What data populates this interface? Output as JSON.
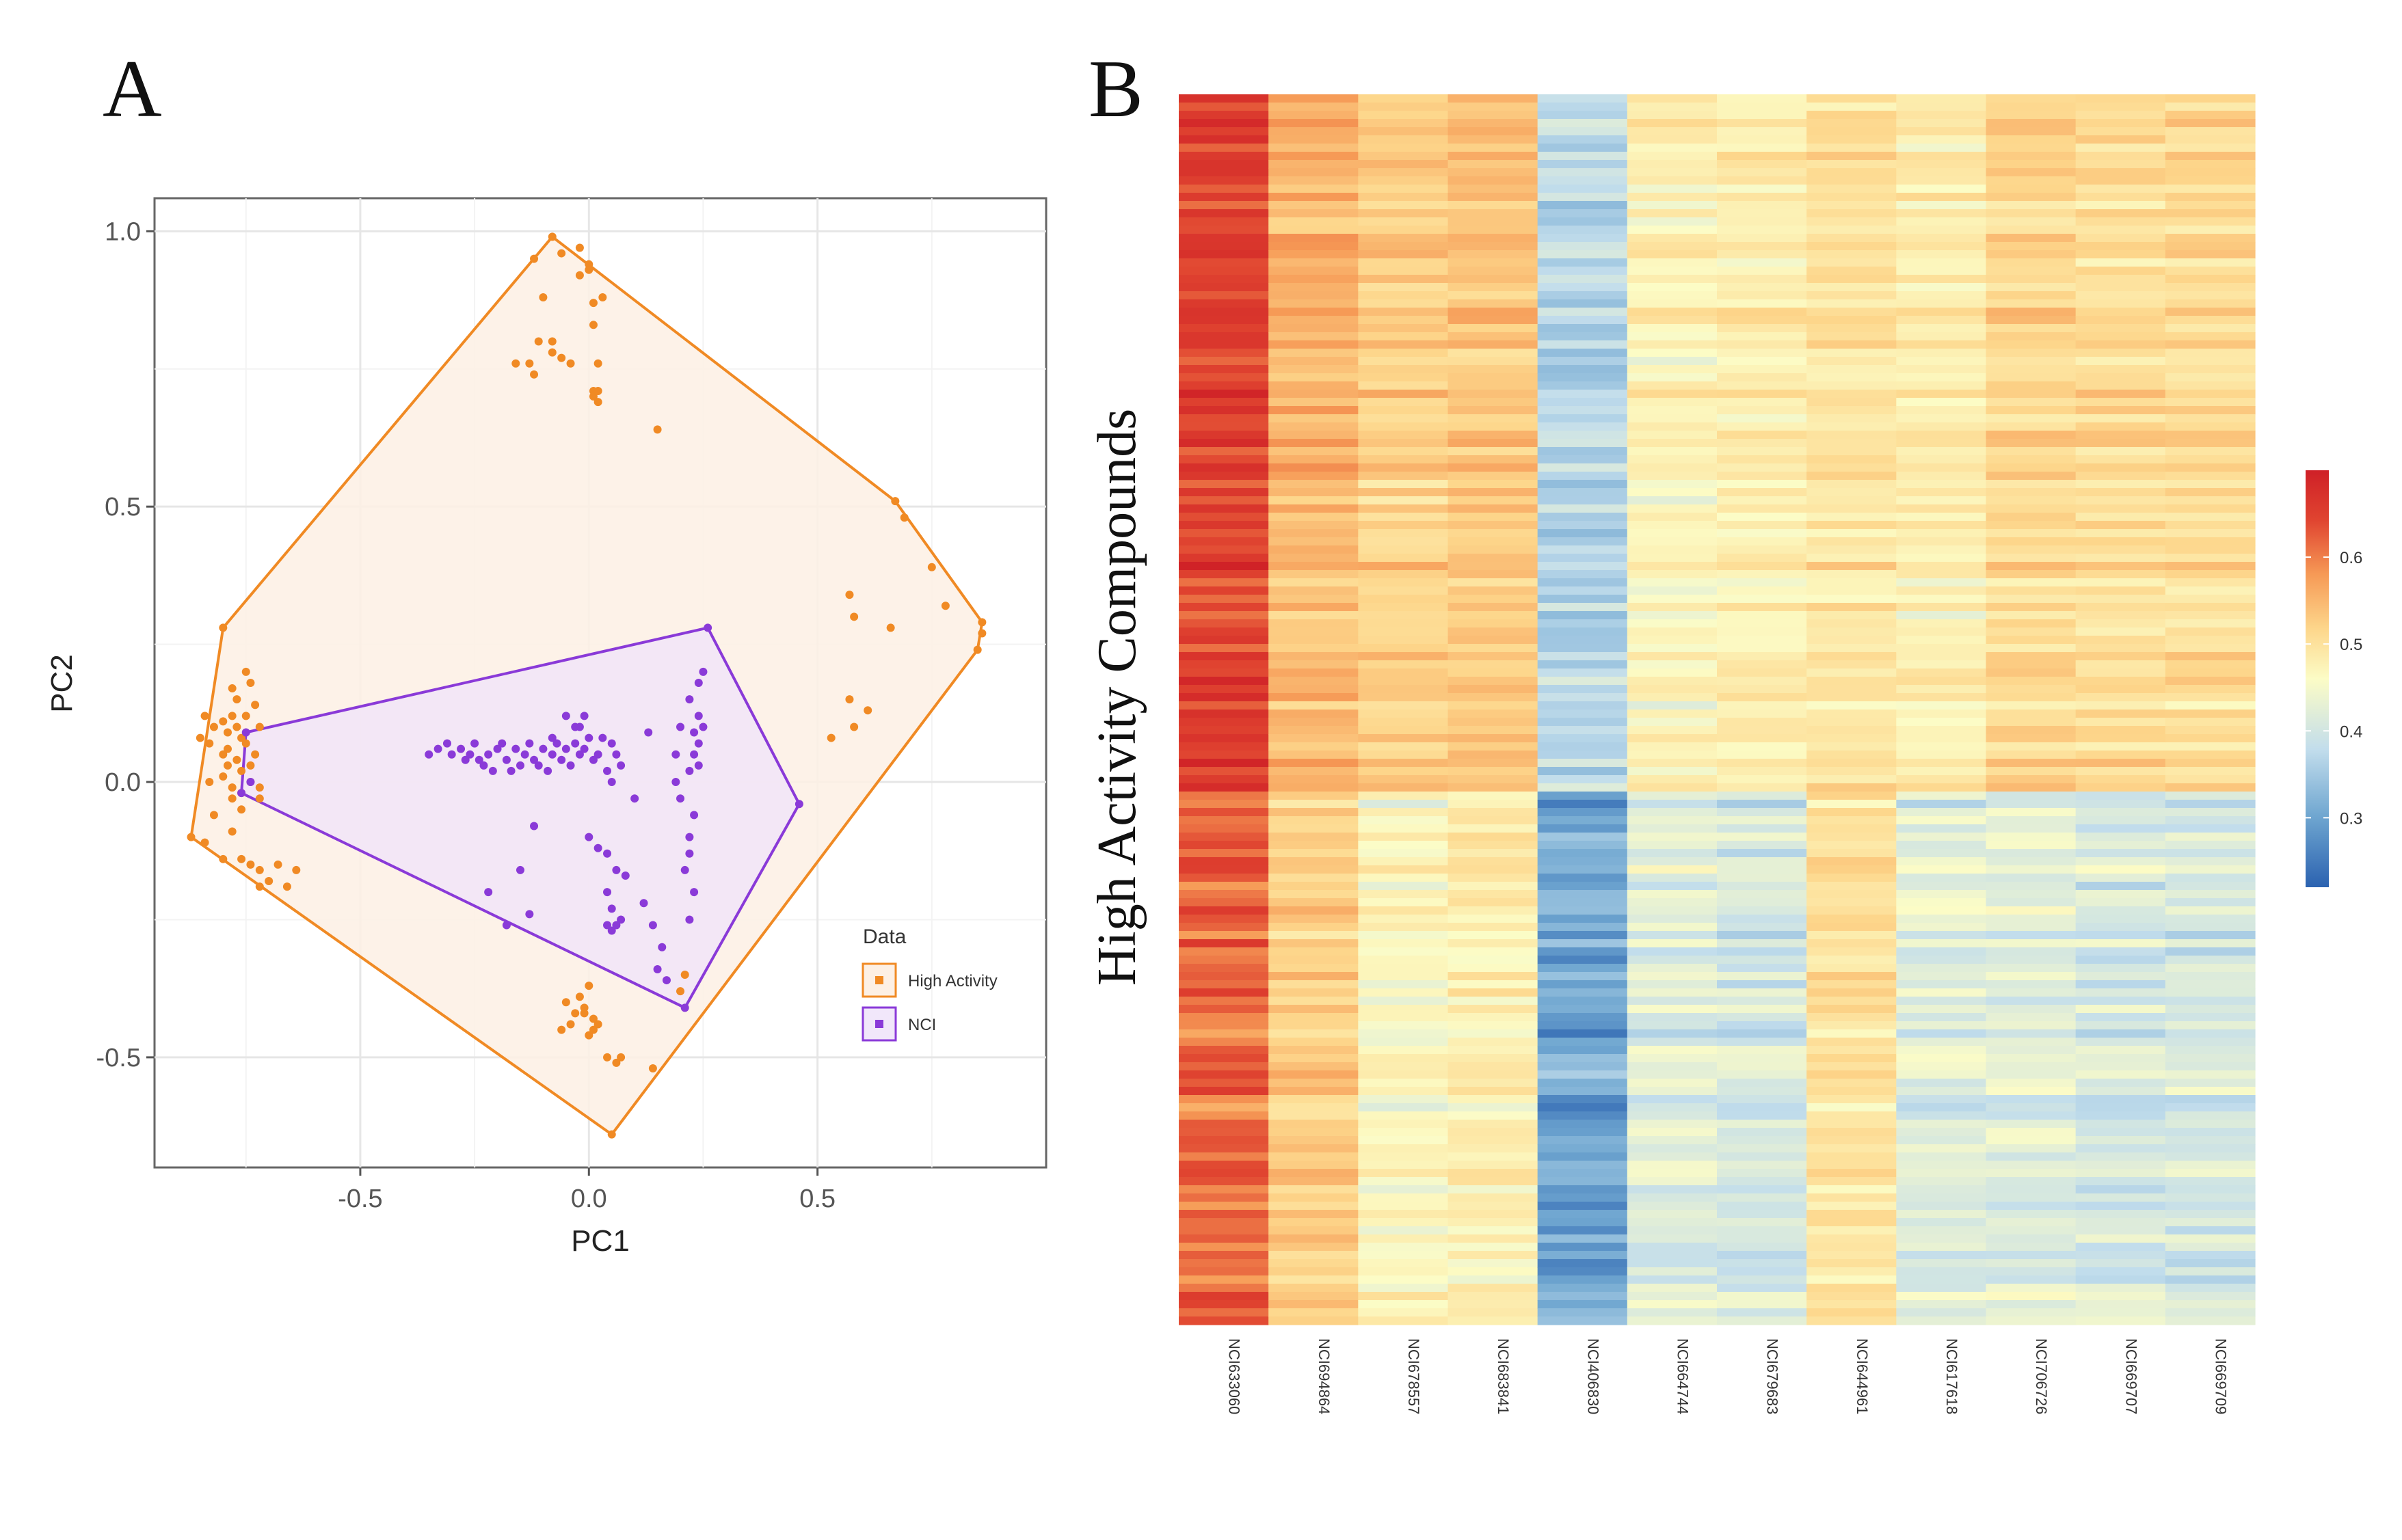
{
  "panels": {
    "a_label": "A",
    "b_label": "B"
  },
  "chart_data": [
    {
      "type": "scatter",
      "panel": "A",
      "title": "",
      "xlabel": "PC1",
      "ylabel": "PC2",
      "xlim": [
        -0.95,
        1.0
      ],
      "ylim": [
        -0.7,
        1.06
      ],
      "xticks": [
        -0.5,
        0.0,
        0.5
      ],
      "xtick_labels": [
        "-0.5",
        "0.0",
        "0.5"
      ],
      "yticks": [
        -0.5,
        0.0,
        0.5,
        1.0
      ],
      "ytick_labels": [
        "-0.5",
        "0.0",
        "0.5",
        "1.0"
      ],
      "grid": true,
      "legend": {
        "title": "Data",
        "position": "right",
        "entries": [
          {
            "label": "High Activity",
            "color": "#f08a24"
          },
          {
            "label": "NCI",
            "color": "#8a3ad8"
          }
        ]
      },
      "series": [
        {
          "name": "High Activity",
          "color": "#f08a24",
          "hull": [
            [
              -0.08,
              0.99
            ],
            [
              0.67,
              0.51
            ],
            [
              0.86,
              0.29
            ],
            [
              0.85,
              0.24
            ],
            [
              0.05,
              -0.64
            ],
            [
              -0.87,
              -0.1
            ],
            [
              -0.8,
              0.28
            ]
          ],
          "points": [
            [
              -0.08,
              0.99
            ],
            [
              -0.02,
              0.97
            ],
            [
              -0.06,
              0.96
            ],
            [
              0.0,
              0.93
            ],
            [
              0.0,
              0.94
            ],
            [
              -0.12,
              0.95
            ],
            [
              -0.02,
              0.92
            ],
            [
              -0.1,
              0.88
            ],
            [
              -0.11,
              0.8
            ],
            [
              -0.13,
              0.76
            ],
            [
              -0.12,
              0.74
            ],
            [
              -0.16,
              0.76
            ],
            [
              -0.08,
              0.8
            ],
            [
              -0.08,
              0.78
            ],
            [
              -0.06,
              0.77
            ],
            [
              -0.04,
              0.76
            ],
            [
              0.02,
              0.76
            ],
            [
              0.01,
              0.87
            ],
            [
              0.01,
              0.83
            ],
            [
              0.03,
              0.88
            ],
            [
              0.01,
              0.71
            ],
            [
              0.01,
              0.7
            ],
            [
              0.02,
              0.71
            ],
            [
              0.02,
              0.69
            ],
            [
              0.15,
              0.64
            ],
            [
              0.67,
              0.51
            ],
            [
              0.69,
              0.48
            ],
            [
              0.75,
              0.39
            ],
            [
              0.78,
              0.32
            ],
            [
              0.86,
              0.29
            ],
            [
              0.85,
              0.24
            ],
            [
              0.86,
              0.27
            ],
            [
              0.57,
              0.34
            ],
            [
              0.58,
              0.3
            ],
            [
              0.66,
              0.28
            ],
            [
              0.57,
              0.15
            ],
            [
              0.58,
              0.1
            ],
            [
              0.61,
              0.13
            ],
            [
              0.53,
              0.08
            ],
            [
              0.05,
              -0.64
            ],
            [
              0.14,
              -0.52
            ],
            [
              0.2,
              -0.38
            ],
            [
              0.21,
              -0.35
            ],
            [
              0.04,
              -0.5
            ],
            [
              0.06,
              -0.51
            ],
            [
              0.07,
              -0.5
            ],
            [
              0.0,
              -0.46
            ],
            [
              0.02,
              -0.44
            ],
            [
              0.01,
              -0.45
            ],
            [
              -0.01,
              -0.41
            ],
            [
              -0.01,
              -0.42
            ],
            [
              0.0,
              -0.37
            ],
            [
              0.01,
              -0.43
            ],
            [
              -0.02,
              -0.39
            ],
            [
              -0.06,
              -0.45
            ],
            [
              -0.05,
              -0.4
            ],
            [
              -0.04,
              -0.44
            ],
            [
              -0.03,
              -0.42
            ],
            [
              -0.87,
              -0.1
            ],
            [
              -0.82,
              -0.06
            ],
            [
              -0.84,
              -0.11
            ],
            [
              -0.8,
              -0.14
            ],
            [
              -0.78,
              -0.09
            ],
            [
              -0.76,
              -0.14
            ],
            [
              -0.74,
              -0.15
            ],
            [
              -0.72,
              -0.16
            ],
            [
              -0.72,
              -0.19
            ],
            [
              -0.7,
              -0.18
            ],
            [
              -0.66,
              -0.19
            ],
            [
              -0.64,
              -0.16
            ],
            [
              -0.68,
              -0.15
            ],
            [
              -0.76,
              -0.05
            ],
            [
              -0.78,
              -0.03
            ],
            [
              -0.72,
              -0.03
            ],
            [
              -0.83,
              0.0
            ],
            [
              -0.8,
              0.01
            ],
            [
              -0.74,
              0.03
            ],
            [
              -0.8,
              0.28
            ],
            [
              -0.75,
              0.2
            ],
            [
              -0.78,
              0.17
            ],
            [
              -0.74,
              0.18
            ],
            [
              -0.77,
              0.15
            ],
            [
              -0.75,
              0.12
            ],
            [
              -0.73,
              0.14
            ],
            [
              -0.78,
              0.12
            ],
            [
              -0.8,
              0.11
            ],
            [
              -0.72,
              0.1
            ],
            [
              -0.84,
              0.12
            ],
            [
              -0.83,
              0.07
            ],
            [
              -0.85,
              0.08
            ],
            [
              -0.79,
              0.06
            ],
            [
              -0.76,
              0.08
            ],
            [
              -0.8,
              0.05
            ],
            [
              -0.79,
              0.03
            ],
            [
              -0.77,
              0.04
            ],
            [
              -0.73,
              0.05
            ],
            [
              -0.75,
              0.07
            ],
            [
              -0.79,
              0.09
            ],
            [
              -0.77,
              0.1
            ],
            [
              -0.82,
              0.1
            ],
            [
              -0.76,
              0.02
            ],
            [
              -0.74,
              0.0
            ],
            [
              -0.78,
              -0.01
            ],
            [
              -0.76,
              -0.02
            ],
            [
              -0.72,
              -0.01
            ]
          ]
        },
        {
          "name": "NCI",
          "color": "#8a3ad8",
          "hull": [
            [
              0.26,
              0.28
            ],
            [
              0.46,
              -0.04
            ],
            [
              0.21,
              -0.41
            ],
            [
              -0.76,
              -0.02
            ],
            [
              -0.75,
              0.09
            ]
          ],
          "points": [
            [
              0.26,
              0.28
            ],
            [
              0.46,
              -0.04
            ],
            [
              0.21,
              -0.41
            ],
            [
              -0.76,
              -0.02
            ],
            [
              -0.75,
              0.09
            ],
            [
              -0.74,
              0.0
            ],
            [
              -0.33,
              0.06
            ],
            [
              -0.3,
              0.05
            ],
            [
              -0.28,
              0.06
            ],
            [
              -0.26,
              0.05
            ],
            [
              -0.24,
              0.04
            ],
            [
              -0.22,
              0.05
            ],
            [
              -0.2,
              0.06
            ],
            [
              -0.18,
              0.04
            ],
            [
              -0.17,
              0.02
            ],
            [
              -0.16,
              0.06
            ],
            [
              -0.14,
              0.05
            ],
            [
              -0.12,
              0.04
            ],
            [
              -0.1,
              0.06
            ],
            [
              -0.08,
              0.05
            ],
            [
              -0.06,
              0.04
            ],
            [
              -0.05,
              0.06
            ],
            [
              -0.04,
              0.03
            ],
            [
              -0.02,
              0.05
            ],
            [
              -0.01,
              0.06
            ],
            [
              0.01,
              0.04
            ],
            [
              0.02,
              0.05
            ],
            [
              0.04,
              0.02
            ],
            [
              0.05,
              0.0
            ],
            [
              -0.23,
              0.03
            ],
            [
              -0.21,
              0.02
            ],
            [
              -0.19,
              0.07
            ],
            [
              -0.15,
              0.03
            ],
            [
              -0.13,
              0.07
            ],
            [
              -0.11,
              0.03
            ],
            [
              -0.09,
              0.02
            ],
            [
              -0.07,
              0.07
            ],
            [
              -0.03,
              0.07
            ],
            [
              0.0,
              0.08
            ],
            [
              0.03,
              0.08
            ],
            [
              0.05,
              0.07
            ],
            [
              0.06,
              0.05
            ],
            [
              0.07,
              0.03
            ],
            [
              -0.35,
              0.05
            ],
            [
              -0.31,
              0.07
            ],
            [
              -0.27,
              0.04
            ],
            [
              -0.25,
              0.07
            ],
            [
              -0.02,
              0.1
            ],
            [
              -0.01,
              0.12
            ],
            [
              -0.03,
              0.1
            ],
            [
              -0.05,
              0.12
            ],
            [
              -0.08,
              0.08
            ],
            [
              0.13,
              0.09
            ],
            [
              0.2,
              0.1
            ],
            [
              0.19,
              0.05
            ],
            [
              0.19,
              0.0
            ],
            [
              0.2,
              -0.03
            ],
            [
              0.22,
              0.15
            ],
            [
              0.24,
              0.12
            ],
            [
              0.24,
              0.18
            ],
            [
              0.25,
              0.2
            ],
            [
              0.23,
              0.09
            ],
            [
              0.25,
              0.1
            ],
            [
              0.24,
              0.07
            ],
            [
              0.23,
              0.05
            ],
            [
              0.24,
              0.03
            ],
            [
              0.22,
              0.02
            ],
            [
              0.23,
              -0.06
            ],
            [
              0.22,
              -0.1
            ],
            [
              0.22,
              -0.13
            ],
            [
              0.21,
              -0.16
            ],
            [
              0.23,
              -0.2
            ],
            [
              0.22,
              -0.25
            ],
            [
              0.0,
              -0.1
            ],
            [
              0.02,
              -0.12
            ],
            [
              0.04,
              -0.13
            ],
            [
              0.06,
              -0.16
            ],
            [
              0.04,
              -0.2
            ],
            [
              0.05,
              -0.23
            ],
            [
              0.07,
              -0.25
            ],
            [
              0.04,
              -0.26
            ],
            [
              0.05,
              -0.27
            ],
            [
              0.08,
              -0.17
            ],
            [
              0.06,
              -0.26
            ],
            [
              0.12,
              -0.22
            ],
            [
              0.14,
              -0.26
            ],
            [
              0.16,
              -0.3
            ],
            [
              0.15,
              -0.34
            ],
            [
              0.17,
              -0.36
            ],
            [
              0.1,
              -0.03
            ],
            [
              -0.12,
              -0.08
            ],
            [
              -0.15,
              -0.16
            ],
            [
              -0.22,
              -0.2
            ],
            [
              -0.13,
              -0.24
            ],
            [
              -0.18,
              -0.26
            ]
          ]
        }
      ]
    },
    {
      "type": "heatmap",
      "panel": "B",
      "ylabel": "High Activity Compounds",
      "columns": [
        "NCI633060",
        "NCI694864",
        "NCI678557",
        "NCI683841",
        "NCI406830",
        "NCI664744",
        "NCI679683",
        "NCI644961",
        "NCI617618",
        "NCI706726",
        "NCI669707",
        "NCI669709"
      ],
      "row_count": 150,
      "top_group_rows": 85,
      "column_means_top": [
        0.64,
        0.53,
        0.5,
        0.51,
        0.35,
        0.44,
        0.45,
        0.47,
        0.45,
        0.49,
        0.48,
        0.48
      ],
      "column_means_bottom": [
        0.6,
        0.5,
        0.43,
        0.45,
        0.29,
        0.39,
        0.38,
        0.47,
        0.39,
        0.39,
        0.38,
        0.38
      ],
      "colorbar": {
        "range": [
          0.22,
          0.7
        ],
        "ticks": [
          0.3,
          0.4,
          0.5,
          0.6
        ],
        "tick_labels": [
          "0.3",
          "0.4",
          "0.5",
          "0.6"
        ],
        "colors": [
          "#2b62b0",
          "#6fa6d0",
          "#c2ddec",
          "#fcfcc6",
          "#fdd68b",
          "#f69a56",
          "#e04430",
          "#cf2027"
        ]
      }
    }
  ]
}
